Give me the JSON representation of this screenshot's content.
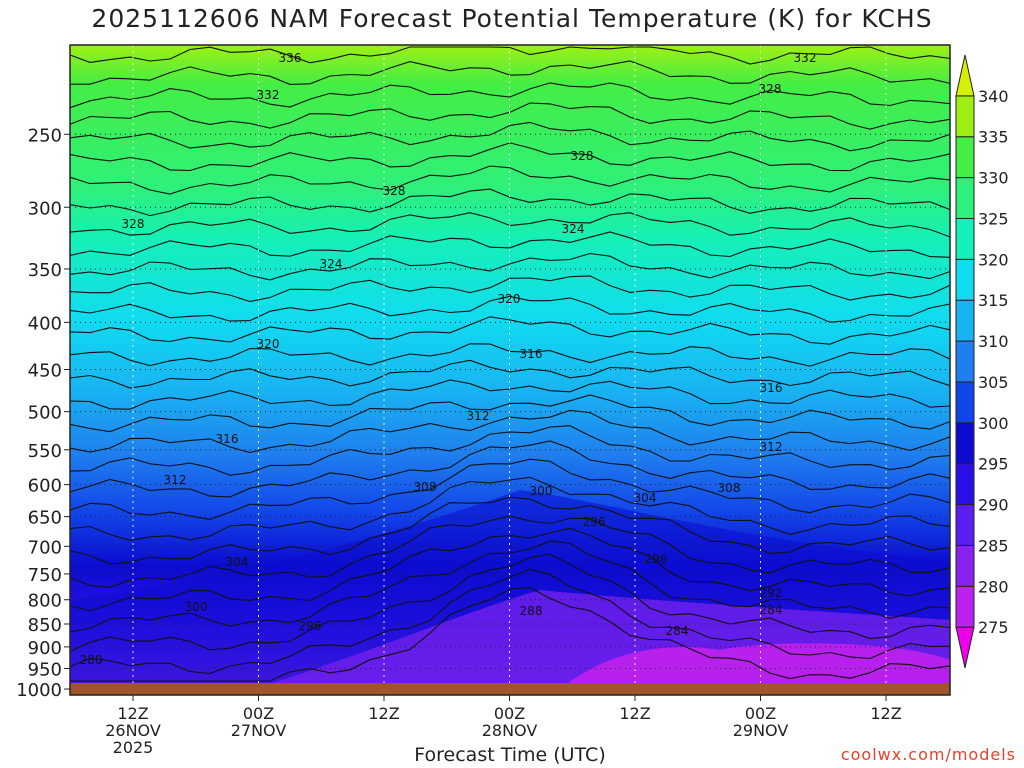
{
  "page": {
    "title": "2025112606 NAM Forecast Potential Temperature (K) for KCHS",
    "credit": "coolwx.com/models"
  },
  "chart_data": {
    "type": "heatmap",
    "title": "2025112606 NAM Forecast Potential Temperature (K) for KCHS",
    "xlabel": "Forecast Time (UTC)",
    "ylabel": "",
    "y_axis": {
      "type": "log",
      "direction": "inverted",
      "range": [
        1015,
        200
      ],
      "ticks": [
        250,
        300,
        350,
        400,
        450,
        500,
        550,
        600,
        650,
        700,
        750,
        800,
        850,
        900,
        950,
        1000
      ]
    },
    "x_axis": {
      "range_hours_label": "2025-11-26 06Z to 2025-11-29 18Z",
      "ticks": [
        {
          "label": "12Z",
          "date": "26NOV",
          "year": "2025"
        },
        {
          "label": "00Z",
          "date": "27NOV"
        },
        {
          "label": "12Z"
        },
        {
          "label": "00Z",
          "date": "28NOV"
        },
        {
          "label": "12Z"
        },
        {
          "label": "00Z",
          "date": "29NOV"
        },
        {
          "label": "12Z"
        }
      ]
    },
    "colorbar": {
      "levels": [
        275,
        280,
        285,
        290,
        295,
        300,
        305,
        310,
        315,
        320,
        325,
        330,
        335,
        340
      ],
      "colors": [
        "#ee00ee",
        "#bb22ee",
        "#8a22ee",
        "#5a1ef0",
        "#2a10e6",
        "#0c0ccf",
        "#1245e8",
        "#1f7fee",
        "#18b4f2",
        "#10dcf0",
        "#15f0b8",
        "#2ef07a",
        "#44ee44",
        "#9ef014",
        "#d6f000"
      ]
    },
    "contour_labels": [
      "336",
      "332",
      "332",
      "328",
      "328",
      "328",
      "328",
      "324",
      "324",
      "320",
      "320",
      "316",
      "316",
      "316",
      "312",
      "312",
      "312",
      "308",
      "308",
      "304",
      "304",
      "300",
      "300",
      "296",
      "296",
      "296",
      "292",
      "288",
      "284",
      "284",
      "280"
    ],
    "grid": true,
    "surface_color": "#a0552a"
  }
}
